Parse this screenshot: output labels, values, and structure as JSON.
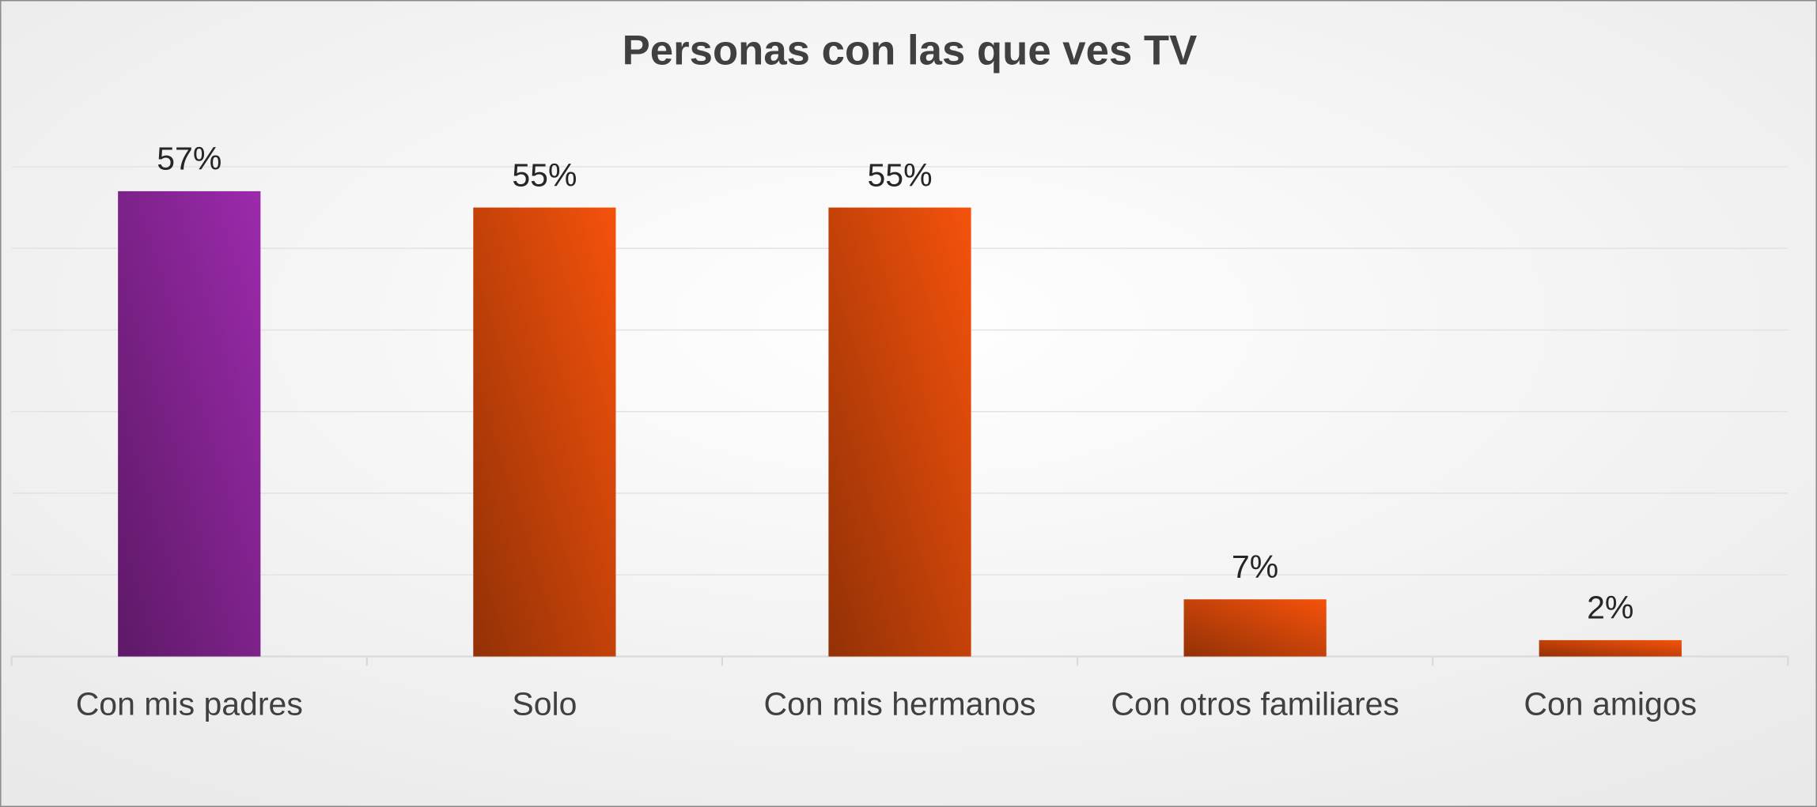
{
  "chart_data": {
    "type": "bar",
    "title": "Personas con las que ves TV",
    "categories": [
      "Con mis padres",
      "Solo",
      "Con mis hermanos",
      "Con otros familiares",
      "Con amigos"
    ],
    "values": [
      57,
      55,
      55,
      7,
      2
    ],
    "value_labels": [
      "57%",
      "55%",
      "55%",
      "7%",
      "2%"
    ],
    "colors": [
      "#9c2aac",
      "#f5520b",
      "#f5520b",
      "#f5520b",
      "#f5520b"
    ],
    "ylim": [
      0,
      60
    ],
    "yticks": [
      0,
      10,
      20,
      30,
      40,
      50,
      60
    ],
    "grid": true
  }
}
